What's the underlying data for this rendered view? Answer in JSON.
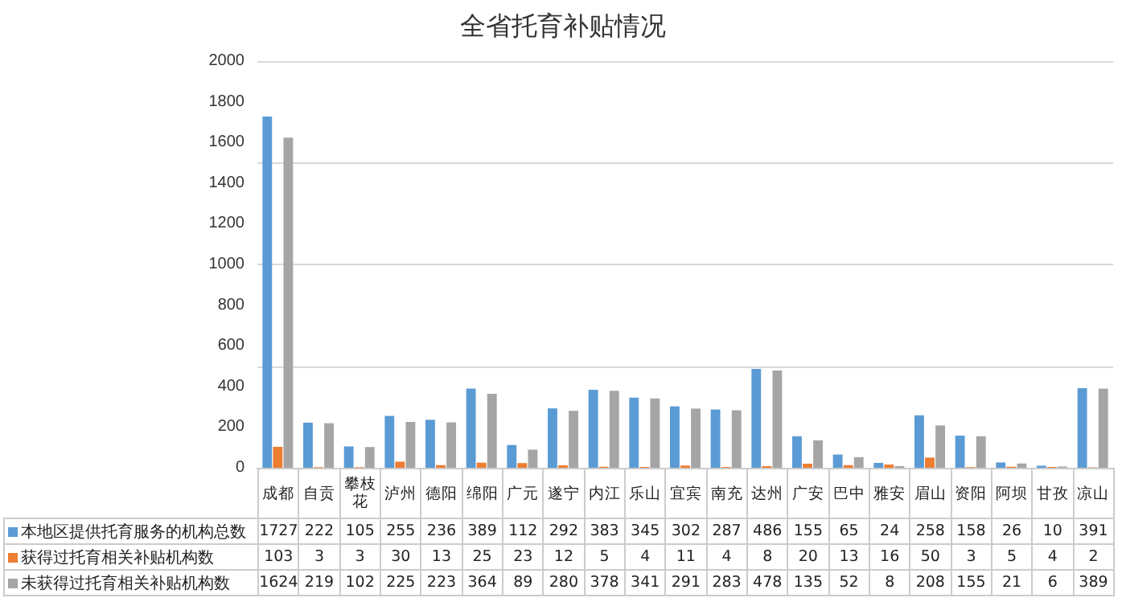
{
  "chart_data": {
    "type": "bar",
    "title": "全省托育补贴情况",
    "categories": [
      "成都",
      "自贡",
      "攀枝花",
      "泸州",
      "德阳",
      "绵阳",
      "广元",
      "遂宁",
      "内江",
      "乐山",
      "宜宾",
      "南充",
      "达州",
      "广安",
      "巴中",
      "雅安",
      "眉山",
      "资阳",
      "阿坝",
      "甘孜",
      "凉山"
    ],
    "series": [
      {
        "name": "本地区提供托育服务的机构总数",
        "color": "#5b9bd5",
        "values": [
          1727,
          222,
          105,
          255,
          236,
          389,
          112,
          292,
          383,
          345,
          302,
          287,
          486,
          155,
          65,
          24,
          258,
          158,
          26,
          10,
          391
        ]
      },
      {
        "name": "获得过托育相关补贴机构数",
        "color": "#ed7d31",
        "values": [
          103,
          3,
          3,
          30,
          13,
          25,
          23,
          12,
          5,
          4,
          11,
          4,
          8,
          20,
          13,
          16,
          50,
          3,
          5,
          4,
          2
        ]
      },
      {
        "name": "未获得过托育相关补贴机构数",
        "color": "#a5a5a5",
        "values": [
          1624,
          219,
          102,
          225,
          223,
          364,
          89,
          280,
          378,
          341,
          291,
          283,
          478,
          135,
          52,
          8,
          208,
          155,
          21,
          6,
          389
        ]
      }
    ],
    "ylim": [
      0,
      2000
    ],
    "yticks": [
      0,
      200,
      400,
      600,
      800,
      1000,
      1200,
      1400,
      1600,
      1800,
      2000
    ],
    "grid": "y",
    "legend": "bottom",
    "data_labels": true
  }
}
